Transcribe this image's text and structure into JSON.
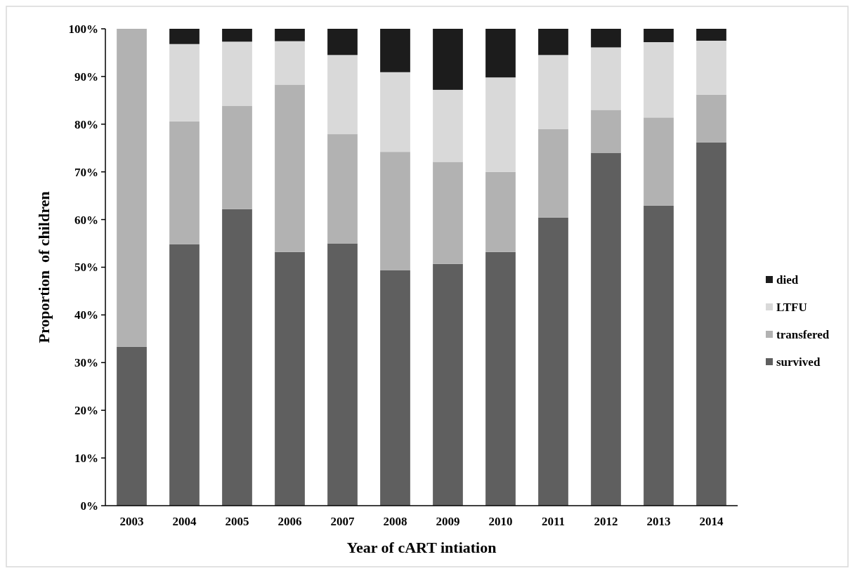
{
  "chart_data": {
    "type": "bar",
    "stacked": true,
    "xlabel": "Year of cART intiation",
    "ylabel": "Proportion  of children",
    "categories": [
      "2003",
      "2004",
      "2005",
      "2006",
      "2007",
      "2008",
      "2009",
      "2010",
      "2011",
      "2012",
      "2013",
      "2014"
    ],
    "series": [
      {
        "name": "survived",
        "color": "#5f5f5f",
        "values": [
          33.3,
          54.8,
          62.2,
          53.2,
          55.0,
          49.4,
          50.7,
          53.2,
          60.4,
          74.0,
          62.9,
          76.2
        ]
      },
      {
        "name": "transfered",
        "color": "#b2b2b2",
        "values": [
          66.7,
          25.8,
          21.6,
          35.1,
          22.9,
          24.8,
          21.4,
          16.8,
          18.6,
          9.0,
          18.5,
          10.0
        ]
      },
      {
        "name": "LTFU",
        "color": "#d9d9d9",
        "values": [
          0,
          16.2,
          13.5,
          9.1,
          16.6,
          16.7,
          15.1,
          19.8,
          15.5,
          13.1,
          15.8,
          11.3
        ]
      },
      {
        "name": "died",
        "color": "#1c1c1c",
        "values": [
          0,
          3.2,
          2.7,
          2.6,
          5.5,
          9.1,
          12.8,
          10.2,
          5.5,
          3.9,
          2.8,
          2.5
        ]
      }
    ],
    "ylim": [
      0,
      100
    ],
    "yticks": [
      {
        "value": 0,
        "label": "0%"
      },
      {
        "value": 10,
        "label": "10%"
      },
      {
        "value": 20,
        "label": "20%"
      },
      {
        "value": 30,
        "label": "30%"
      },
      {
        "value": 40,
        "label": "40%"
      },
      {
        "value": 50,
        "label": "50%"
      },
      {
        "value": 60,
        "label": "60%"
      },
      {
        "value": 70,
        "label": "70%"
      },
      {
        "value": 80,
        "label": "80%"
      },
      {
        "value": 90,
        "label": "90%"
      },
      {
        "value": 100,
        "label": "100%"
      }
    ],
    "grid": false,
    "legend": "right"
  }
}
